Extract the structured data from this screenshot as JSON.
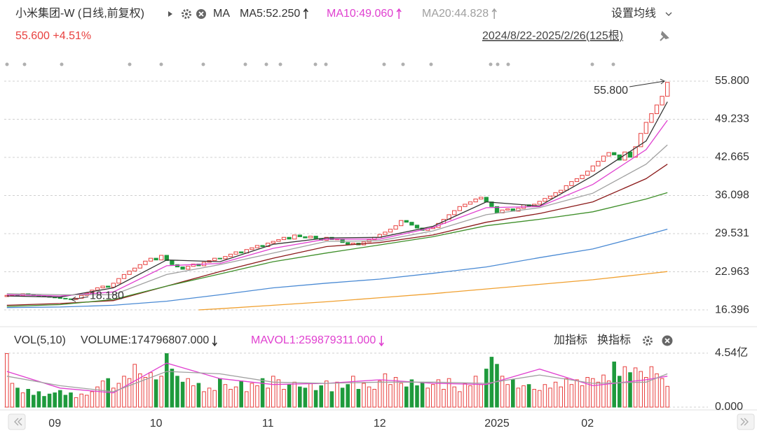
{
  "header": {
    "title": "小米集团-W (日线,前复权)",
    "indicator": "MA",
    "settings": "设置均线",
    "price_change": "55.600 +4.51%",
    "range": "2024/8/22-2025/2/26(125根)",
    "add_indicator": "加指标",
    "switch_indicator": "换指标"
  },
  "chart_data": [
    {
      "type": "candlestick",
      "up_color": "#e8413f",
      "down_color": "#1e9a3c",
      "grid": true,
      "categories": [
        null,
        null,
        null,
        null,
        null,
        null,
        null,
        null,
        null,
        "09",
        null,
        null,
        null,
        null,
        null,
        null,
        null,
        null,
        null,
        null,
        null,
        null,
        null,
        null,
        null,
        null,
        null,
        null,
        "10",
        null,
        null,
        null,
        null,
        null,
        null,
        null,
        null,
        null,
        null,
        null,
        null,
        null,
        null,
        null,
        null,
        null,
        null,
        null,
        null,
        "11",
        null,
        null,
        null,
        null,
        null,
        null,
        null,
        null,
        null,
        null,
        null,
        null,
        null,
        null,
        null,
        null,
        null,
        null,
        null,
        null,
        "12",
        null,
        null,
        null,
        null,
        null,
        null,
        null,
        null,
        null,
        null,
        null,
        null,
        null,
        null,
        null,
        null,
        null,
        null,
        null,
        null,
        null,
        "2025",
        null,
        null,
        null,
        null,
        null,
        null,
        null,
        null,
        null,
        null,
        null,
        null,
        null,
        null,
        null,
        null,
        "02",
        null,
        null,
        null,
        null,
        null,
        null,
        null,
        null,
        null,
        null,
        null,
        null,
        null,
        null,
        null
      ],
      "open": [
        18.7,
        18.9,
        19.0,
        18.8,
        19.2,
        19.0,
        18.9,
        18.8,
        18.7,
        18.6,
        18.5,
        18.4,
        18.3,
        18.2,
        18.4,
        18.9,
        19.3,
        19.8,
        20.2,
        20.5,
        20.3,
        21.0,
        21.8,
        22.5,
        23.1,
        23.6,
        24.2,
        24.8,
        25.3,
        25.0,
        25.8,
        24.9,
        24.2,
        23.8,
        23.4,
        23.9,
        24.3,
        24.0,
        24.6,
        24.9,
        25.3,
        25.2,
        25.6,
        26.0,
        26.4,
        26.2,
        26.8,
        27.1,
        27.5,
        27.3,
        27.9,
        28.2,
        28.5,
        28.9,
        28.6,
        29.3,
        29.0,
        28.8,
        29.1,
        28.7,
        28.4,
        28.9,
        28.5,
        28.6,
        28.0,
        27.7,
        27.9,
        27.6,
        28.1,
        28.5,
        28.9,
        29.4,
        29.8,
        30.3,
        30.9,
        31.8,
        31.5,
        31.0,
        30.5,
        30.1,
        30.4,
        30.6,
        31.3,
        32.0,
        32.8,
        33.5,
        34.2,
        34.6,
        35.0,
        35.5,
        35.8,
        35.0,
        34.2,
        33.1,
        33.6,
        33.8,
        33.4,
        33.9,
        34.5,
        34.2,
        34.6,
        35.1,
        35.6,
        36.0,
        36.6,
        37.0,
        37.8,
        38.5,
        39.0,
        39.6,
        40.3,
        41.2,
        42.0,
        42.9,
        43.5,
        43.1,
        42.2,
        43.6,
        42.7,
        44.5,
        46.8,
        48.7,
        50.2,
        51.7,
        53.2
      ],
      "close": [
        18.9,
        19.0,
        18.8,
        19.2,
        19.0,
        18.9,
        18.8,
        18.7,
        18.6,
        18.5,
        18.4,
        18.3,
        18.2,
        18.4,
        18.9,
        19.3,
        19.8,
        20.2,
        20.5,
        20.3,
        21.0,
        21.8,
        22.5,
        23.1,
        23.6,
        24.2,
        24.8,
        25.3,
        25.0,
        25.8,
        24.9,
        24.2,
        23.8,
        23.4,
        23.9,
        24.3,
        24.0,
        24.6,
        24.9,
        25.3,
        25.2,
        25.6,
        26.0,
        26.4,
        26.2,
        26.8,
        27.1,
        27.5,
        27.3,
        27.9,
        28.2,
        28.5,
        28.9,
        28.6,
        29.3,
        29.0,
        28.8,
        29.1,
        28.7,
        28.4,
        28.9,
        28.5,
        28.6,
        28.0,
        27.7,
        27.9,
        27.6,
        28.1,
        28.5,
        28.9,
        29.4,
        29.8,
        30.3,
        30.9,
        31.8,
        31.5,
        31.0,
        30.5,
        30.1,
        30.4,
        30.6,
        31.3,
        32.0,
        32.8,
        33.5,
        34.2,
        34.6,
        35.0,
        35.5,
        35.8,
        35.0,
        34.2,
        33.1,
        33.6,
        33.8,
        33.4,
        33.9,
        34.5,
        34.2,
        34.6,
        35.1,
        35.6,
        36.0,
        36.6,
        37.0,
        37.8,
        38.5,
        39.0,
        39.6,
        40.3,
        41.2,
        42.0,
        42.9,
        43.5,
        43.1,
        42.2,
        43.6,
        42.7,
        44.5,
        46.8,
        48.7,
        50.2,
        51.7,
        53.2,
        55.6
      ],
      "ylim": [
        13.75,
        57.73
      ],
      "yticks": [
        {
          "value": 55.8,
          "label": "55.800"
        },
        49.233,
        42.665,
        36.098,
        29.531,
        22.963,
        16.396
      ],
      "annotations": [
        {
          "value": 55.8,
          "label": "55.800"
        },
        {
          "value": 18.18,
          "label": "18.180"
        }
      ],
      "series": [
        {
          "name": "MA5:52.250",
          "color": "#333333",
          "x": [
            0,
            10,
            20,
            30,
            40,
            50,
            60,
            70,
            80,
            90,
            100,
            110,
            120,
            124
          ],
          "values": [
            18.8,
            18.6,
            20.2,
            25.0,
            24.7,
            27.7,
            28.8,
            28.9,
            30.8,
            35.0,
            34.3,
            39.5,
            45.5,
            52.25
          ]
        },
        {
          "name": "MA10:49.060",
          "color": "#e040d0",
          "x": [
            0,
            10,
            20,
            30,
            40,
            50,
            60,
            70,
            80,
            90,
            100,
            110,
            120,
            124
          ],
          "values": [
            19.0,
            18.8,
            19.5,
            24.0,
            24.4,
            27.0,
            28.6,
            28.6,
            30.6,
            34.0,
            34.2,
            38.0,
            44.0,
            49.06
          ]
        },
        {
          "name": "MA20:44.828",
          "color": "#a0a0a0",
          "x": [
            0,
            10,
            20,
            30,
            40,
            50,
            60,
            70,
            80,
            90,
            100,
            110,
            120,
            124
          ],
          "values": [
            19.2,
            19.0,
            19.0,
            22.5,
            24.2,
            26.2,
            28.2,
            28.3,
            30.0,
            32.8,
            34.0,
            36.5,
            41.5,
            44.828
          ]
        },
        {
          "color": "#8b1a1a",
          "x": [
            0,
            10,
            20,
            30,
            40,
            50,
            60,
            70,
            80,
            90,
            100,
            110,
            120,
            124
          ],
          "values": [
            17.2,
            17.5,
            18.0,
            20.5,
            23.0,
            25.3,
            27.3,
            28.0,
            29.3,
            31.5,
            33.0,
            35.0,
            39.0,
            41.5
          ]
        },
        {
          "color": "#3f8f2a",
          "x": [
            0,
            10,
            20,
            30,
            40,
            50,
            60,
            70,
            80,
            90,
            100,
            110,
            120,
            124
          ],
          "values": [
            17.0,
            17.3,
            18.2,
            20.5,
            22.6,
            24.7,
            26.2,
            27.6,
            29.0,
            30.9,
            32.0,
            33.3,
            35.5,
            36.6
          ]
        },
        {
          "color": "#4a8ad4",
          "x": [
            0,
            10,
            20,
            30,
            40,
            50,
            60,
            70,
            80,
            90,
            100,
            110,
            120,
            124
          ],
          "values": [
            16.8,
            16.9,
            17.2,
            17.9,
            19.0,
            20.2,
            21.0,
            21.7,
            22.7,
            23.8,
            25.4,
            26.9,
            29.3,
            30.3
          ]
        },
        {
          "color": "#f0a030",
          "x": [
            36,
            40,
            50,
            60,
            70,
            80,
            90,
            100,
            110,
            120,
            124
          ],
          "values": [
            16.4,
            16.6,
            17.2,
            17.8,
            18.5,
            19.2,
            20.0,
            20.8,
            21.6,
            22.6,
            23.0
          ]
        }
      ]
    },
    {
      "type": "bar",
      "title": "VOL(5,10)",
      "grid": true,
      "ylim": [
        0,
        5.0
      ],
      "yticks": [
        {
          "value": 4.54,
          "label": "4.54亿"
        },
        {
          "value": 0,
          "label": "0.000"
        }
      ],
      "series": [
        {
          "name": "VOLUME:174796807.000",
          "color": "#333333",
          "values": [
            4.5,
            2.0,
            1.6,
            1.2,
            1.5,
            1.0,
            1.3,
            0.9,
            1.1,
            1.2,
            1.4,
            1.0,
            1.2,
            0.8,
            1.1,
            1.0,
            1.3,
            1.7,
            2.2,
            2.4,
            1.6,
            2.0,
            2.6,
            2.4,
            3.6,
            2.8,
            2.5,
            2.9,
            2.3,
            2.6,
            4.5,
            3.2,
            2.6,
            2.1,
            2.4,
            1.8,
            2.0,
            1.3,
            1.6,
            1.4,
            2.4,
            1.9,
            1.5,
            1.7,
            2.2,
            1.3,
            2.0,
            1.8,
            2.4,
            1.6,
            2.6,
            2.3,
            1.5,
            1.9,
            2.1,
            1.7,
            1.6,
            2.0,
            1.4,
            1.8,
            2.2,
            1.3,
            2.1,
            1.6,
            1.9,
            2.6,
            1.5,
            2.0,
            1.7,
            1.5,
            2.2,
            2.8,
            1.9,
            2.5,
            2.0,
            1.7,
            2.3,
            1.8,
            2.1,
            1.6,
            1.9,
            2.3,
            1.5,
            2.4,
            1.7,
            1.3,
            2.0,
            1.8,
            2.6,
            1.9,
            3.2,
            4.2,
            3.6,
            2.6,
            1.9,
            2.3,
            1.6,
            1.8,
            1.9,
            1.5,
            1.4,
            1.9,
            1.6,
            2.1,
            1.7,
            2.4,
            1.9,
            2.3,
            1.8,
            2.5,
            2.4,
            2.1,
            2.7,
            2.2,
            3.8,
            2.6,
            3.4,
            2.9,
            3.3,
            3.0,
            2.5,
            3.4,
            2.8,
            2.4,
            1.748
          ]
        },
        {
          "name": "MAVOL1:259879311.000",
          "color": "#e040d0",
          "x": [
            0,
            10,
            20,
            30,
            40,
            50,
            60,
            70,
            80,
            90,
            100,
            110,
            120,
            124
          ],
          "values": [
            3.0,
            1.6,
            1.2,
            3.7,
            2.4,
            1.9,
            2.0,
            2.3,
            2.0,
            1.9,
            3.2,
            1.8,
            2.3,
            2.599
          ]
        },
        {
          "color": "#a0a0a0",
          "x": [
            0,
            10,
            20,
            30,
            40,
            50,
            60,
            70,
            80,
            90,
            100,
            110,
            120,
            124
          ],
          "values": [
            2.6,
            1.8,
            1.3,
            3.0,
            2.8,
            2.1,
            2.0,
            2.1,
            2.1,
            2.0,
            2.7,
            2.0,
            2.1,
            2.8
          ]
        }
      ]
    }
  ]
}
